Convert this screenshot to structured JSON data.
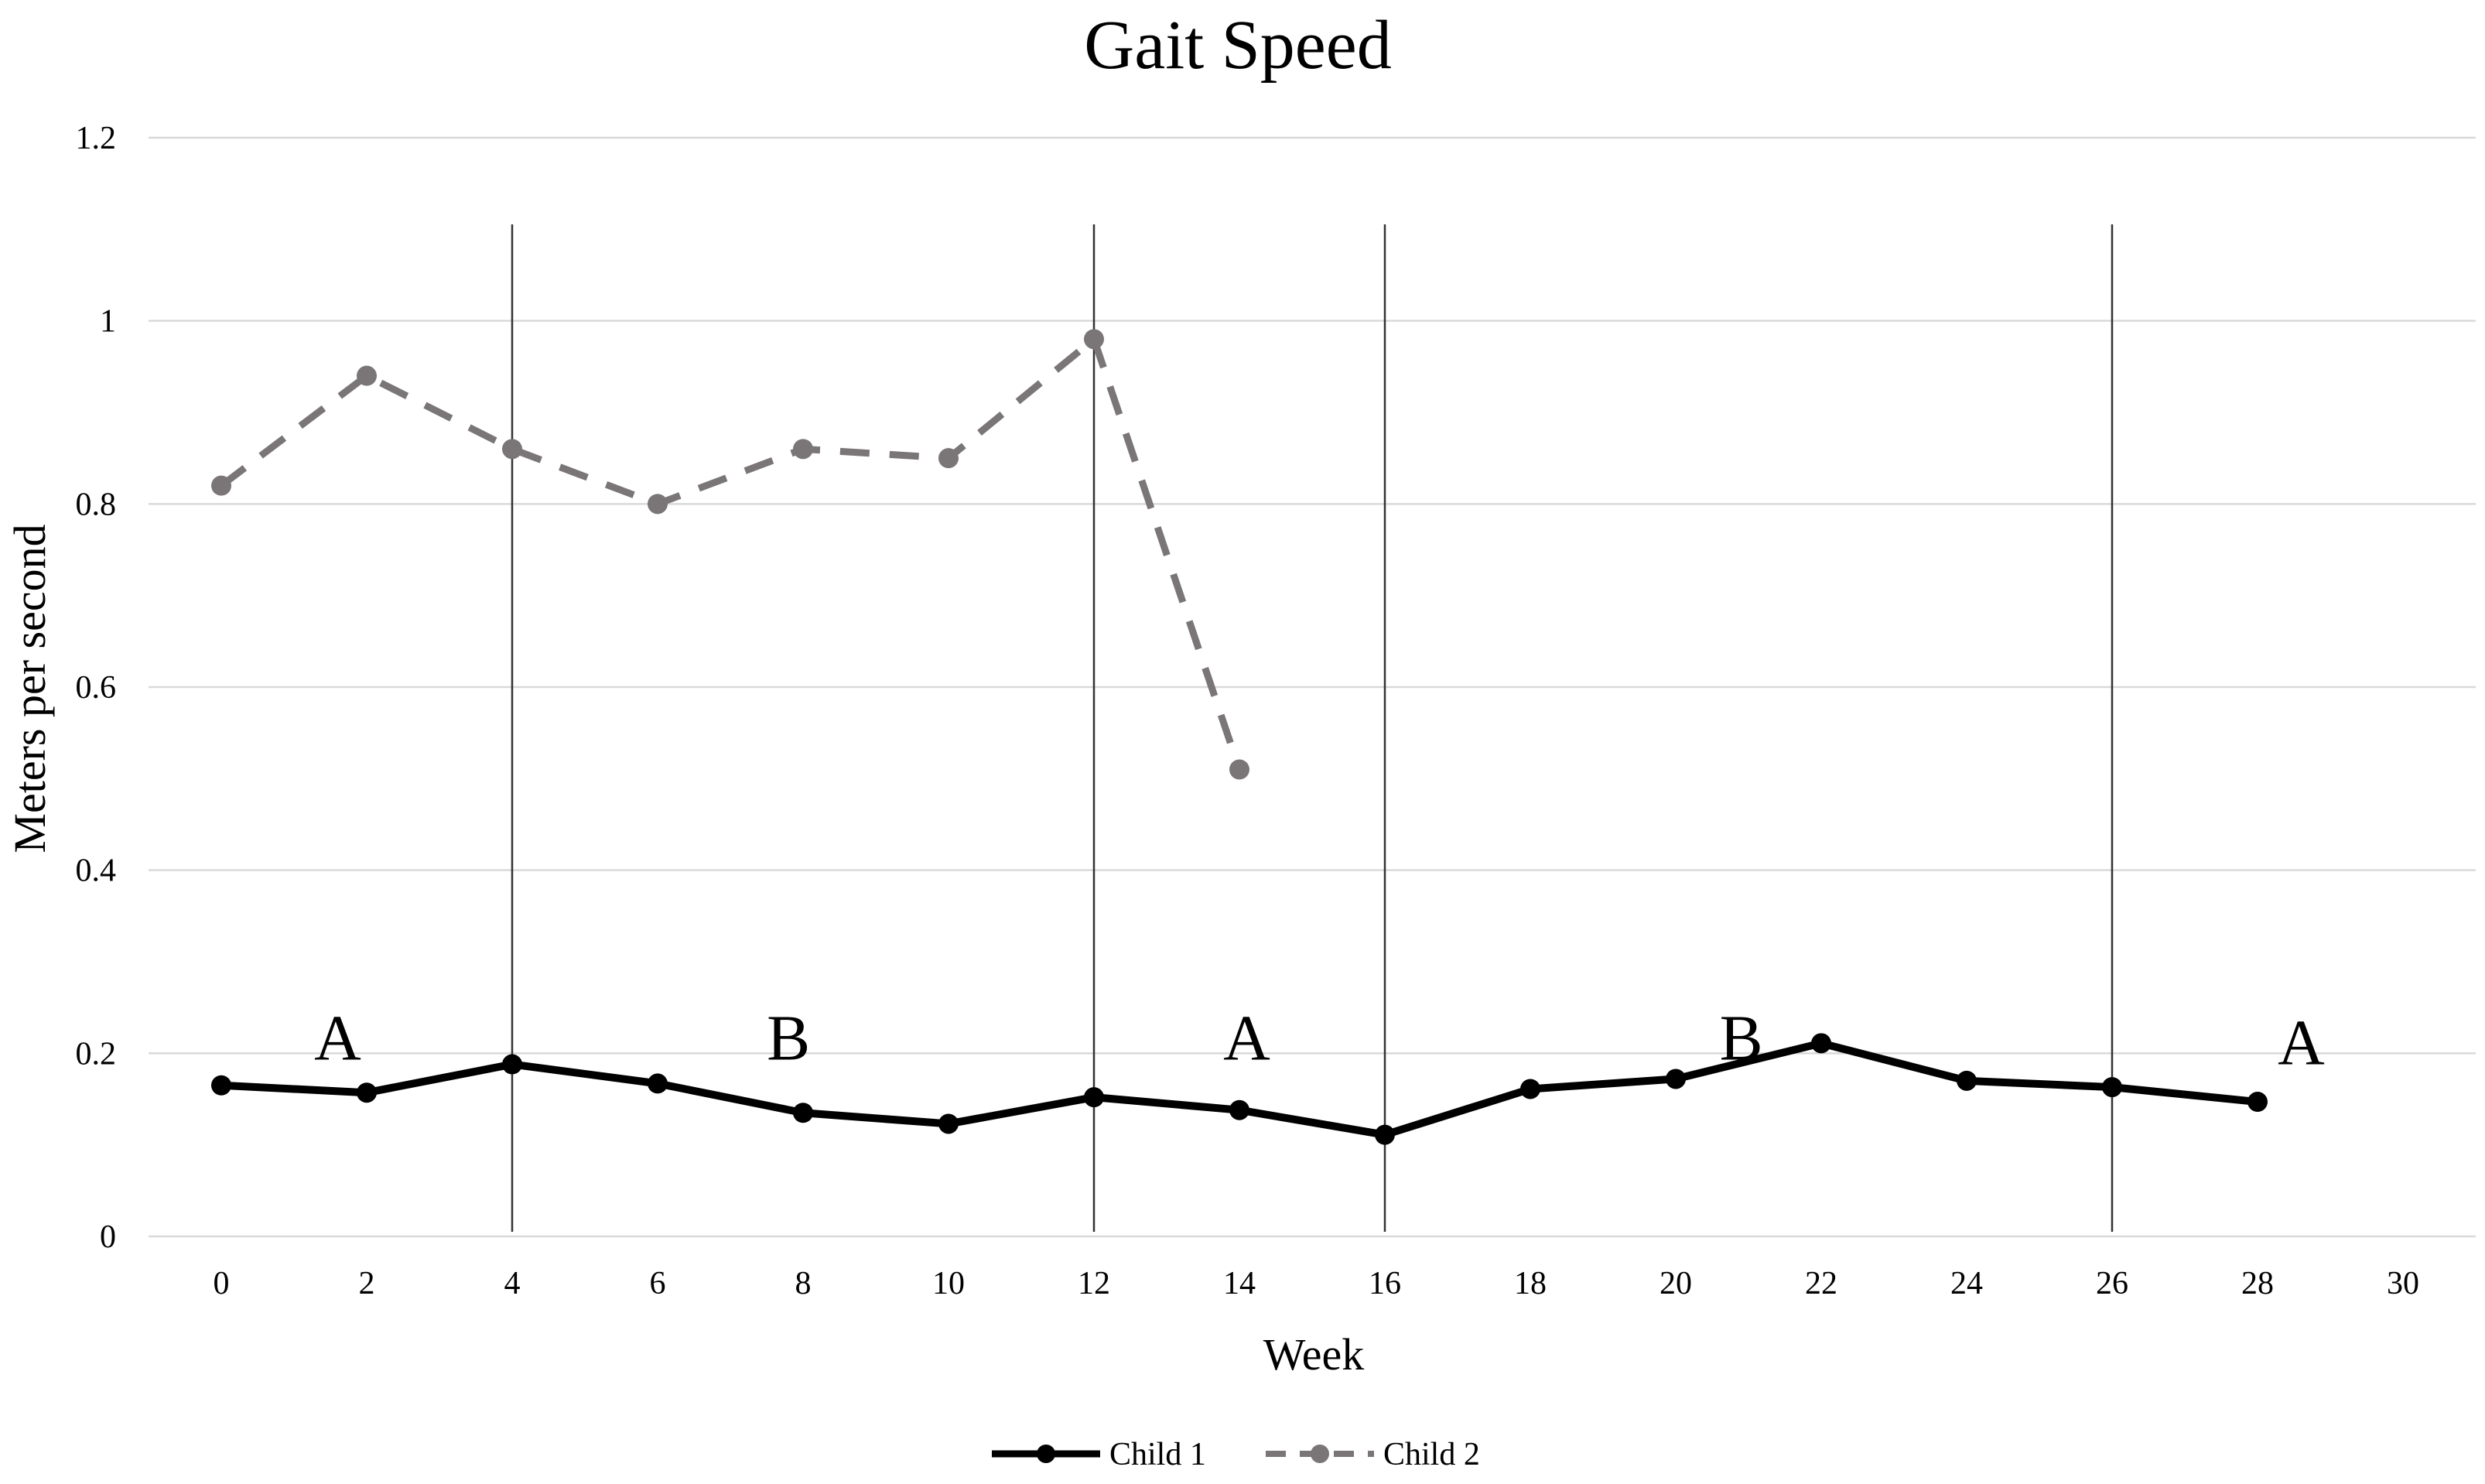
{
  "chart_data": {
    "type": "line",
    "title": "Gait Speed",
    "xlabel": "Week",
    "ylabel": "Meters per second",
    "xlim": [
      0,
      30
    ],
    "ylim": [
      0,
      1.2
    ],
    "x_ticks": [
      0,
      2,
      4,
      6,
      8,
      10,
      12,
      14,
      16,
      18,
      20,
      22,
      24,
      26,
      28,
      30
    ],
    "x_tick_labels": [
      "0",
      "2",
      "4",
      "6",
      "8",
      "10",
      "12",
      "14",
      "16",
      "18",
      "20",
      "22",
      "24",
      "26",
      "28",
      "30"
    ],
    "y_ticks": [
      0,
      0.2,
      0.4,
      0.6,
      0.8,
      1.0,
      1.2
    ],
    "y_tick_labels": [
      "0",
      "0.2",
      "0.4",
      "0.6",
      "0.8",
      "1",
      "1.2"
    ],
    "grid": "horizontal",
    "legend_position": "bottom",
    "series": [
      {
        "name": "Child 1",
        "style": "solid",
        "color": "#000000",
        "x": [
          0,
          2,
          4,
          6,
          8,
          10,
          12,
          14,
          16,
          18,
          20,
          22,
          24,
          26,
          28
        ],
        "values": [
          0.165,
          0.157,
          0.188,
          0.167,
          0.135,
          0.123,
          0.152,
          0.138,
          0.111,
          0.161,
          0.172,
          0.211,
          0.17,
          0.163,
          0.147
        ]
      },
      {
        "name": "Child 2",
        "style": "dashed",
        "color": "#7a7577",
        "x": [
          0,
          2,
          4,
          6,
          8,
          10,
          12,
          14
        ],
        "values": [
          0.82,
          0.94,
          0.86,
          0.8,
          0.86,
          0.85,
          0.98,
          0.51
        ]
      }
    ],
    "phase_lines": [
      4,
      12,
      16,
      26
    ],
    "phase_labels": [
      {
        "text": "A",
        "x": 1.6,
        "y": 0.2
      },
      {
        "text": "B",
        "x": 7.8,
        "y": 0.2
      },
      {
        "text": "A",
        "x": 14.1,
        "y": 0.2
      },
      {
        "text": "B",
        "x": 20.9,
        "y": 0.2
      },
      {
        "text": "A",
        "x": 28.6,
        "y": 0.195
      }
    ]
  }
}
